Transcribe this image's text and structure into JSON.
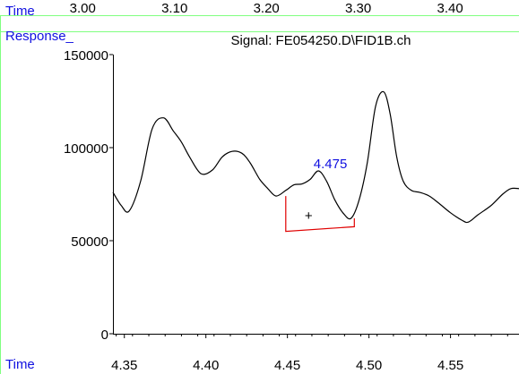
{
  "colors": {
    "trace": "#000000",
    "frame_line": "#80ff80",
    "axis_label": "#1010e0",
    "peak_label": "#1010e0",
    "baseline": "#e00000"
  },
  "chart_data": {
    "type": "line",
    "title": "Signal: FE054250.D\\FID1B.ch",
    "ylabel": "Response_",
    "xlabel_top": "Time",
    "xlabel_bottom": "Time",
    "xlim": [
      4.343,
      4.592
    ],
    "ylim": [
      0,
      150000
    ],
    "top_xlim": [
      2.91,
      3.475
    ],
    "yticks": [
      0,
      50000,
      100000,
      150000
    ],
    "ytick_labels": [
      "0",
      "50000",
      "100000",
      "150000"
    ],
    "xticks": [
      4.35,
      4.4,
      4.45,
      4.5,
      4.55
    ],
    "xtick_labels": [
      "4.35",
      "4.40",
      "4.45",
      "4.50",
      "4.55"
    ],
    "top_xticks": [
      3.0,
      3.1,
      3.2,
      3.3,
      3.4
    ],
    "top_xtick_labels": [
      "3.00",
      "3.10",
      "3.20",
      "3.30",
      "3.40"
    ],
    "grid": false,
    "series": [
      {
        "x": [
          4.343,
          4.348,
          4.353,
          4.36,
          4.367,
          4.374,
          4.38,
          4.385,
          4.39,
          4.397,
          4.404,
          4.41,
          4.416,
          4.422,
          4.427,
          4.433,
          4.438,
          4.443,
          4.449,
          4.454,
          4.459,
          4.464,
          4.469,
          4.474,
          4.479,
          4.484,
          4.489,
          4.494,
          4.499,
          4.504,
          4.509,
          4.513,
          4.517,
          4.521,
          4.526,
          4.531,
          4.537,
          4.543,
          4.55,
          4.557,
          4.561,
          4.567,
          4.575,
          4.582,
          4.587,
          4.592
        ],
        "y": [
          76000,
          69000,
          66000,
          82000,
          110000,
          116000,
          109000,
          103000,
          95000,
          86000,
          88000,
          95000,
          98000,
          97000,
          92000,
          83000,
          78000,
          74000,
          77000,
          80000,
          80500,
          83000,
          87500,
          82000,
          72000,
          65000,
          62000,
          72000,
          92000,
          122000,
          130000,
          118000,
          95000,
          82000,
          77000,
          76000,
          74000,
          70000,
          65000,
          61000,
          60000,
          64000,
          69000,
          75000,
          78000,
          78000
        ]
      }
    ],
    "annotations": [
      {
        "type": "peak_label",
        "text": "4.475",
        "x": 4.466,
        "y": 89000
      },
      {
        "type": "integration_baseline",
        "points": [
          [
            4.449,
            74000
          ],
          [
            4.449,
            55000
          ],
          [
            4.491,
            57500
          ],
          [
            4.491,
            62000
          ]
        ]
      },
      {
        "type": "marker",
        "text": "+",
        "x": 4.463,
        "y": 61000
      }
    ]
  }
}
